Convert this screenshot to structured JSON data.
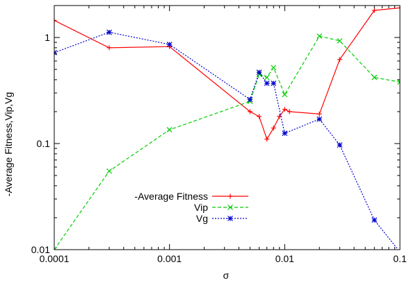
{
  "chart_data": {
    "type": "line",
    "xlabel": "σ",
    "ylabel": "-Average Fitness,Vip,Vg",
    "xscale": "log",
    "yscale": "log",
    "xlim": [
      0.0001,
      0.1
    ],
    "ylim": [
      0.01,
      2
    ],
    "x_ticks": [
      {
        "value": 0.0001,
        "label": "0.0001"
      },
      {
        "value": 0.001,
        "label": "0.001"
      },
      {
        "value": 0.01,
        "label": "0.01"
      },
      {
        "value": 0.1,
        "label": "0.1"
      }
    ],
    "y_ticks": [
      {
        "value": 0.01,
        "label": "0.01"
      },
      {
        "value": 0.1,
        "label": "0.1"
      },
      {
        "value": 1,
        "label": "1"
      }
    ],
    "grid": false,
    "legend": "bottom-left",
    "series": [
      {
        "name": "-Average Fitness",
        "color": "#ff0000",
        "dash": "solid",
        "marker": "plus",
        "x": [
          0.0001,
          0.0003,
          0.001,
          0.005,
          0.006,
          0.007,
          0.008,
          0.009,
          0.01,
          0.011,
          0.02,
          0.03,
          0.06,
          0.1
        ],
        "y": [
          1.45,
          0.8,
          0.82,
          0.2,
          0.18,
          0.11,
          0.14,
          0.18,
          0.21,
          0.2,
          0.19,
          0.62,
          1.8,
          1.9
        ]
      },
      {
        "name": "Vip",
        "color": "#00cc00",
        "dash": "dashed",
        "marker": "x",
        "x": [
          0.0001,
          0.0003,
          0.001,
          0.005,
          0.006,
          0.007,
          0.008,
          0.01,
          0.02,
          0.03,
          0.06,
          0.1
        ],
        "y": [
          0.01,
          0.055,
          0.135,
          0.25,
          0.45,
          0.42,
          0.52,
          0.29,
          1.03,
          0.93,
          0.42,
          0.38
        ]
      },
      {
        "name": "Vg",
        "color": "#0000cc",
        "dash": "dotted",
        "marker": "star",
        "x": [
          0.0001,
          0.0003,
          0.001,
          0.005,
          0.006,
          0.007,
          0.008,
          0.01,
          0.02,
          0.03,
          0.06,
          0.1
        ],
        "y": [
          0.72,
          1.12,
          0.86,
          0.26,
          0.47,
          0.37,
          0.37,
          0.125,
          0.17,
          0.097,
          0.019,
          0.0095
        ]
      }
    ]
  }
}
